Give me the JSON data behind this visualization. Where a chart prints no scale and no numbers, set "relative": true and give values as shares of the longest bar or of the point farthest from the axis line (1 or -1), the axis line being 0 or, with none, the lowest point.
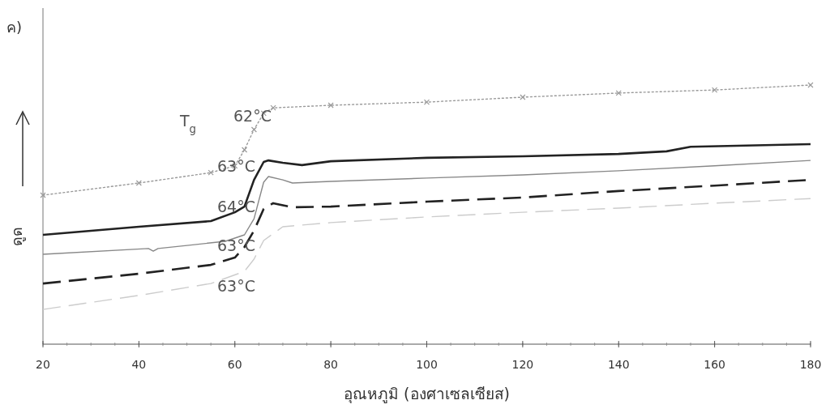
{
  "chart_data": {
    "type": "line",
    "title": "ค)",
    "xlabel": "อุณหภูมิ (องศาเซลเซียส)",
    "ylabel": "ดูด",
    "relative": true,
    "xlim": [
      20,
      180
    ],
    "xticks": [
      20,
      40,
      60,
      80,
      100,
      120,
      140,
      160,
      180
    ],
    "series": [
      {
        "color": "#9a9a9a",
        "marker": "cross",
        "line_style": "dotted",
        "x": [
          20,
          40,
          55,
          60,
          62,
          64,
          66,
          68,
          80,
          100,
          120,
          140,
          160,
          180
        ],
        "values": [
          0.575,
          0.622,
          0.662,
          0.688,
          0.75,
          0.828,
          0.891,
          0.912,
          0.922,
          0.934,
          0.953,
          0.969,
          0.981,
          1.0
        ]
      },
      {
        "color": "#222222",
        "marker": "none",
        "line_style": "solid",
        "x": [
          20,
          40,
          55,
          60,
          62,
          64,
          66,
          67,
          70,
          74,
          80,
          100,
          120,
          140,
          150,
          155,
          180
        ],
        "values": [
          0.422,
          0.453,
          0.475,
          0.509,
          0.531,
          0.634,
          0.703,
          0.709,
          0.7,
          0.691,
          0.706,
          0.719,
          0.725,
          0.734,
          0.744,
          0.762,
          0.772
        ]
      },
      {
        "color": "#888888",
        "marker": "none",
        "line_style": "solid",
        "x": [
          20,
          42,
          43,
          44,
          50,
          58,
          62,
          64,
          66,
          67,
          70,
          72,
          80,
          100,
          120,
          140,
          160,
          180
        ],
        "values": [
          0.347,
          0.369,
          0.359,
          0.369,
          0.381,
          0.397,
          0.422,
          0.484,
          0.625,
          0.647,
          0.634,
          0.622,
          0.628,
          0.641,
          0.653,
          0.669,
          0.688,
          0.709
        ]
      },
      {
        "color": "#222222",
        "marker": "none",
        "line_style": "dashed",
        "x": [
          20,
          40,
          55,
          60,
          62,
          64,
          66,
          68,
          72,
          80,
          100,
          120,
          140,
          160,
          180
        ],
        "values": [
          0.234,
          0.272,
          0.306,
          0.334,
          0.375,
          0.438,
          0.522,
          0.544,
          0.528,
          0.531,
          0.55,
          0.566,
          0.591,
          0.612,
          0.634
        ]
      },
      {
        "color": "#cccccc",
        "marker": "none",
        "line_style": "dashed",
        "x": [
          20,
          40,
          55,
          62,
          64,
          66,
          70,
          80,
          100,
          120,
          140,
          160,
          180
        ],
        "values": [
          0.134,
          0.188,
          0.234,
          0.281,
          0.328,
          0.4,
          0.453,
          0.469,
          0.491,
          0.509,
          0.525,
          0.544,
          0.562
        ]
      }
    ],
    "annotations": [
      "T$_{g}$",
      "62°C",
      "63°C",
      "64°C",
      "63°C",
      "63°C"
    ]
  }
}
